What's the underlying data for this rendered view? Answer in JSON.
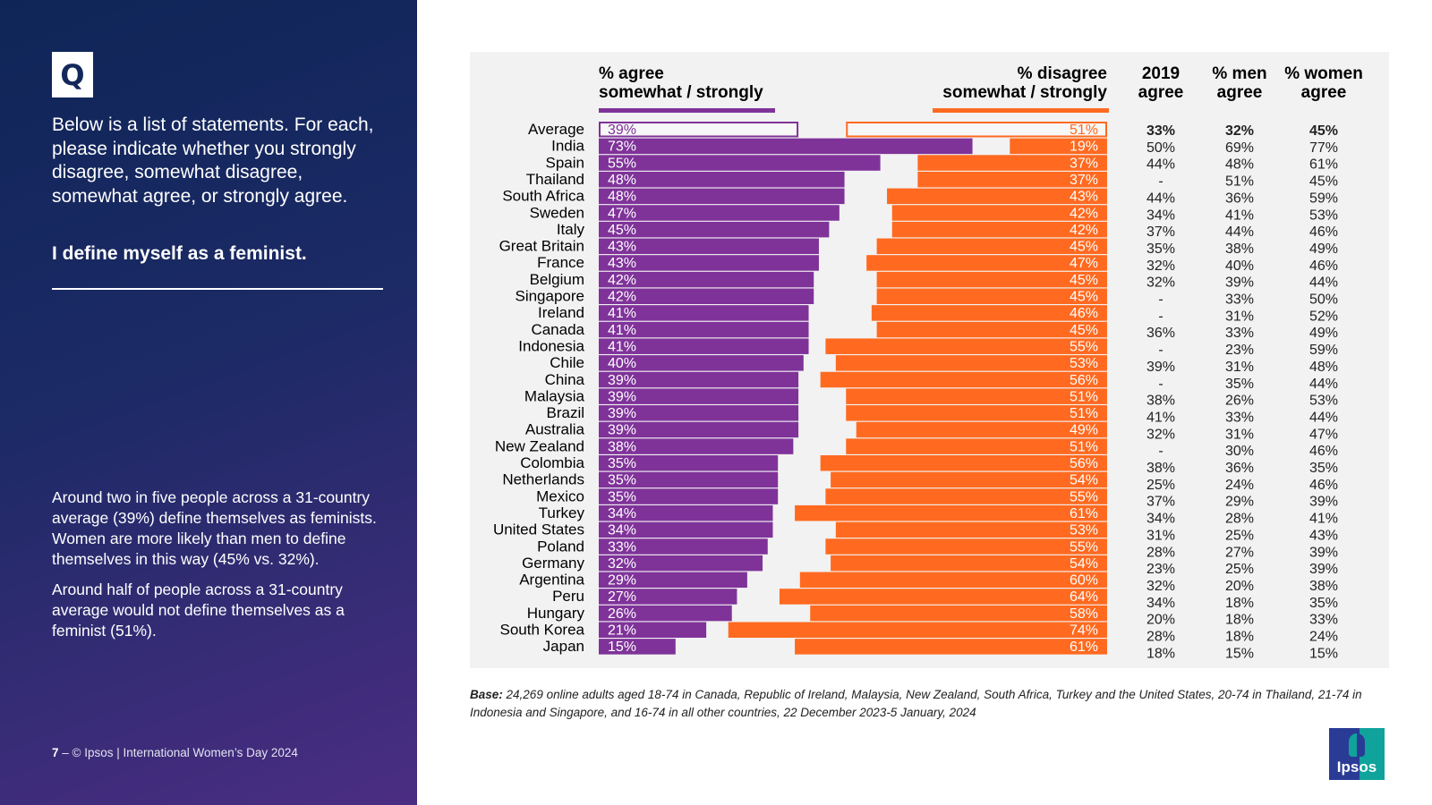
{
  "left_panel": {
    "q_badge": "Q",
    "question": "Below is a list of statements. For each, please indicate whether you strongly disagree, somewhat disagree, somewhat agree, or strongly agree.",
    "statement": "I define myself as a feminist.",
    "summary": [
      "Around two in five people across a 31-country average (39%) define themselves as feminists. Women are more likely than men to define themselves in this way (45% vs. 32%).",
      "Around half of people across a 31-country average would not define themselves as a feminist (51%)."
    ],
    "footer_page": "7",
    "footer_text": " – © Ipsos | International Women’s Day 2024"
  },
  "headers": {
    "agree": [
      "% agree",
      "somewhat / strongly"
    ],
    "disagree": [
      "% disagree",
      "somewhat / strongly"
    ],
    "y2019": [
      "2019",
      "agree"
    ],
    "men": [
      "% men",
      "agree"
    ],
    "women": [
      "% women",
      "agree"
    ]
  },
  "base_note": {
    "label": "Base:",
    "text": " 24,269 online adults aged 18-74 in Canada, Republic of Ireland, Malaysia, New Zealand, South Africa, Turkey and the United States, 20-74 in Thailand, 21-74 in Indonesia and Singapore, and 16-74 in all other countries, 22 December 2023-5 January, 2024"
  },
  "logo": "Ipsos",
  "colors": {
    "agree": "#7f3399",
    "disagree": "#ff6a20",
    "panel_bg": "#f2f2f2"
  },
  "chart_data": {
    "type": "bar",
    "title": "I define myself as a feminist.",
    "orientation": "horizontal-diverging",
    "xlim": [
      0,
      100
    ],
    "categories": [
      "Average",
      "India",
      "Spain",
      "Thailand",
      "South Africa",
      "Sweden",
      "Italy",
      "Great Britain",
      "France",
      "Belgium",
      "Singapore",
      "Ireland",
      "Canada",
      "Indonesia",
      "Chile",
      "China",
      "Malaysia",
      "Brazil",
      "Australia",
      "New Zealand",
      "Colombia",
      "Netherlands",
      "Mexico",
      "Turkey",
      "United States",
      "Poland",
      "Germany",
      "Argentina",
      "Peru",
      "Hungary",
      "South Korea",
      "Japan"
    ],
    "series": [
      {
        "name": "% agree somewhat / strongly",
        "values": [
          39,
          73,
          55,
          48,
          48,
          47,
          45,
          43,
          43,
          42,
          42,
          41,
          41,
          41,
          40,
          39,
          39,
          39,
          39,
          38,
          35,
          35,
          35,
          34,
          34,
          33,
          32,
          29,
          27,
          26,
          21,
          15
        ]
      },
      {
        "name": "% disagree somewhat / strongly",
        "values": [
          51,
          19,
          37,
          37,
          43,
          42,
          42,
          45,
          47,
          45,
          45,
          46,
          45,
          55,
          53,
          56,
          51,
          51,
          49,
          51,
          56,
          54,
          55,
          61,
          53,
          55,
          54,
          60,
          64,
          58,
          74,
          61
        ]
      }
    ],
    "table_columns": [
      {
        "name": "2019 agree",
        "values": [
          "33%",
          "50%",
          "44%",
          "-",
          "44%",
          "34%",
          "37%",
          "35%",
          "32%",
          "32%",
          "-",
          "-",
          "36%",
          "-",
          "39%",
          "-",
          "38%",
          "41%",
          "32%",
          "-",
          "38%",
          "25%",
          "37%",
          "34%",
          "31%",
          "28%",
          "23%",
          "32%",
          "34%",
          "20%",
          "28%",
          "18%"
        ]
      },
      {
        "name": "% men agree",
        "values": [
          "32%",
          "69%",
          "48%",
          "51%",
          "36%",
          "41%",
          "44%",
          "38%",
          "40%",
          "39%",
          "33%",
          "31%",
          "33%",
          "23%",
          "31%",
          "35%",
          "26%",
          "33%",
          "31%",
          "30%",
          "36%",
          "24%",
          "29%",
          "28%",
          "25%",
          "27%",
          "25%",
          "20%",
          "18%",
          "18%",
          "18%",
          "15%"
        ]
      },
      {
        "name": "% women agree",
        "values": [
          "45%",
          "77%",
          "61%",
          "45%",
          "59%",
          "53%",
          "46%",
          "49%",
          "46%",
          "44%",
          "50%",
          "52%",
          "49%",
          "59%",
          "48%",
          "44%",
          "53%",
          "44%",
          "47%",
          "46%",
          "35%",
          "46%",
          "39%",
          "41%",
          "43%",
          "39%",
          "39%",
          "38%",
          "35%",
          "33%",
          "24%",
          "15%"
        ]
      }
    ],
    "highlighted_row": "Average",
    "legend": "top"
  }
}
